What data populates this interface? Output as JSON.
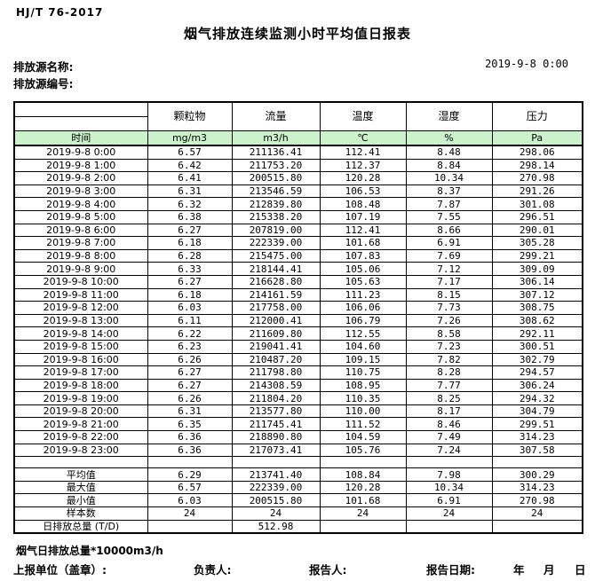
{
  "page": {
    "standard_number": "HJ/T  76-2017",
    "title": "烟气排放连续监测小时平均值日报表",
    "source_name_label": "排放源名称:",
    "source_id_label": "排放源编号:",
    "datetime": "2019-9-8 0:00"
  },
  "colors": {
    "header_green": "#ccf2cc",
    "border": "#000000"
  },
  "table": {
    "header": {
      "time_label": "时间",
      "columns": [
        "颗粒物",
        "流量",
        "温度",
        "湿度",
        "压力"
      ],
      "units": [
        "mg/m3",
        "m3/h",
        "℃",
        "%",
        "Pa"
      ]
    },
    "rows": [
      [
        "2019-9-8 0:00",
        "6.57",
        "211136.41",
        "112.41",
        "8.48",
        "298.06"
      ],
      [
        "2019-9-8 1:00",
        "6.42",
        "211753.20",
        "112.37",
        "8.84",
        "298.14"
      ],
      [
        "2019-9-8 2:00",
        "6.41",
        "200515.80",
        "120.28",
        "10.34",
        "270.98"
      ],
      [
        "2019-9-8 3:00",
        "6.31",
        "213546.59",
        "106.53",
        "8.37",
        "291.26"
      ],
      [
        "2019-9-8 4:00",
        "6.32",
        "212839.80",
        "108.48",
        "7.87",
        "301.08"
      ],
      [
        "2019-9-8 5:00",
        "6.38",
        "215338.20",
        "107.19",
        "7.55",
        "296.51"
      ],
      [
        "2019-9-8 6:00",
        "6.27",
        "207819.00",
        "112.41",
        "8.66",
        "290.01"
      ],
      [
        "2019-9-8 7:00",
        "6.18",
        "222339.00",
        "101.68",
        "6.91",
        "305.28"
      ],
      [
        "2019-9-8 8:00",
        "6.28",
        "215475.00",
        "107.83",
        "7.69",
        "299.21"
      ],
      [
        "2019-9-8 9:00",
        "6.33",
        "218144.41",
        "105.06",
        "7.12",
        "309.09"
      ],
      [
        "2019-9-8 10:00",
        "6.27",
        "216628.80",
        "105.63",
        "7.17",
        "306.14"
      ],
      [
        "2019-9-8 11:00",
        "6.18",
        "214161.59",
        "111.23",
        "8.15",
        "307.12"
      ],
      [
        "2019-9-8 12:00",
        "6.03",
        "217758.00",
        "106.06",
        "7.73",
        "308.75"
      ],
      [
        "2019-9-8 13:00",
        "6.11",
        "212000.41",
        "106.79",
        "7.26",
        "308.62"
      ],
      [
        "2019-9-8 14:00",
        "6.22",
        "211609.80",
        "112.55",
        "8.58",
        "292.11"
      ],
      [
        "2019-9-8 15:00",
        "6.23",
        "219041.41",
        "104.60",
        "7.23",
        "300.51"
      ],
      [
        "2019-9-8 16:00",
        "6.26",
        "210487.20",
        "109.15",
        "7.82",
        "302.79"
      ],
      [
        "2019-9-8 17:00",
        "6.27",
        "211798.80",
        "110.75",
        "8.28",
        "294.57"
      ],
      [
        "2019-9-8 18:00",
        "6.27",
        "214308.59",
        "108.95",
        "7.77",
        "306.24"
      ],
      [
        "2019-9-8 19:00",
        "6.26",
        "211804.20",
        "110.35",
        "8.25",
        "294.32"
      ],
      [
        "2019-9-8 20:00",
        "6.31",
        "213577.80",
        "110.00",
        "8.17",
        "304.79"
      ],
      [
        "2019-9-8 21:00",
        "6.35",
        "211745.41",
        "111.52",
        "8.46",
        "299.51"
      ],
      [
        "2019-9-8 22:00",
        "6.36",
        "218890.80",
        "104.59",
        "7.49",
        "314.23"
      ],
      [
        "2019-9-8 23:00",
        "6.36",
        "217073.41",
        "105.76",
        "7.24",
        "307.58"
      ]
    ],
    "summary": [
      [
        "平均值",
        "6.29",
        "213741.40",
        "108.84",
        "7.98",
        "300.29"
      ],
      [
        "最大值",
        "6.57",
        "222339.00",
        "120.28",
        "10.34",
        "314.23"
      ],
      [
        "最小值",
        "6.03",
        "200515.80",
        "101.68",
        "6.91",
        "270.98"
      ],
      [
        "样本数",
        "24",
        "24",
        "24",
        "24",
        "24"
      ],
      [
        "日排放总量 (T/D)",
        "",
        "512.98",
        "",
        "",
        ""
      ]
    ]
  },
  "footer": {
    "note": "烟气日排放总量*10000m3/h",
    "report_unit_label": "上报单位（盖章）:",
    "responsible_label": "负责人:",
    "reporter_label": "报告人:",
    "report_date_label": "报告日期:",
    "year_label": "年",
    "month_label": "月",
    "day_label": "日"
  }
}
